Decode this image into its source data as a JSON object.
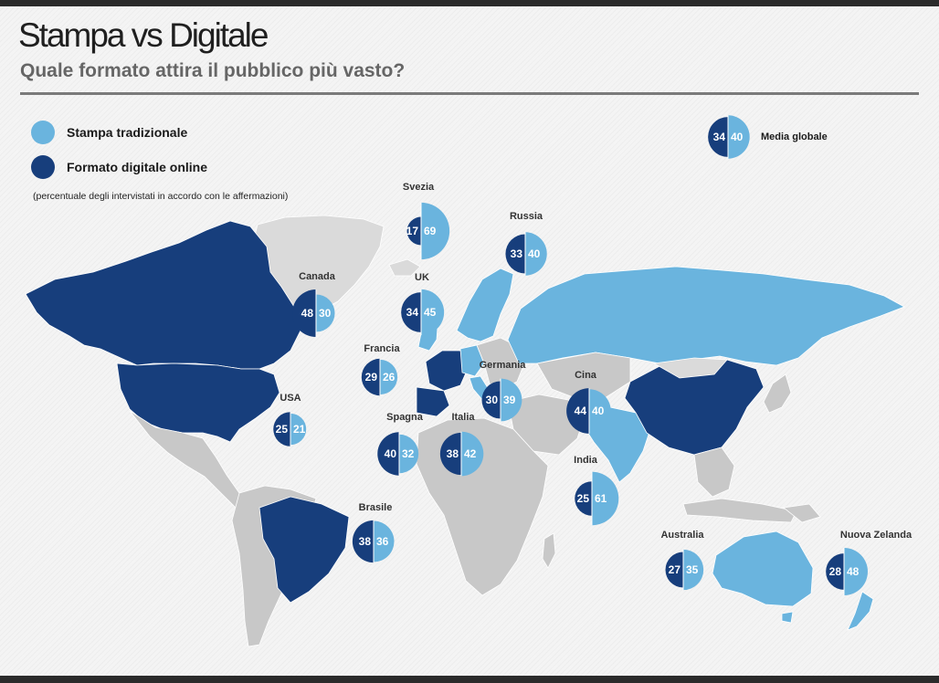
{
  "header": {
    "title": "Stampa vs Digitale",
    "subtitle": "Quale formato attira il pubblico più vasto?"
  },
  "legend": {
    "items": [
      {
        "label": "Stampa tradizionale",
        "color": "#6ab4de"
      },
      {
        "label": "Formato digitale online",
        "color": "#173e7c"
      }
    ],
    "note": "(percentuale degli intervistati in accordo con le affermazioni)"
  },
  "colors": {
    "print": "#6ab4de",
    "digital": "#173e7c",
    "land": "#c8c8c8",
    "land_alt": "#dadada"
  },
  "global": {
    "label": "Media globale",
    "digital": 34,
    "print": 40
  },
  "countries": [
    {
      "name": "Svezia",
      "digital": 17,
      "print": 69,
      "map_group": "print"
    },
    {
      "name": "Russia",
      "digital": 33,
      "print": 40,
      "map_group": "print"
    },
    {
      "name": "Canada",
      "digital": 48,
      "print": 30,
      "map_group": "digital"
    },
    {
      "name": "UK",
      "digital": 34,
      "print": 45,
      "map_group": "print"
    },
    {
      "name": "Francia",
      "digital": 29,
      "print": 26,
      "map_group": "digital"
    },
    {
      "name": "Germania",
      "digital": 30,
      "print": 39,
      "map_group": "print"
    },
    {
      "name": "Cina",
      "digital": 44,
      "print": 40,
      "map_group": "digital"
    },
    {
      "name": "USA",
      "digital": 25,
      "print": 21,
      "map_group": "digital"
    },
    {
      "name": "Spagna",
      "digital": 40,
      "print": 32,
      "map_group": "digital"
    },
    {
      "name": "Italia",
      "digital": 38,
      "print": 42,
      "map_group": "print"
    },
    {
      "name": "India",
      "digital": 25,
      "print": 61,
      "map_group": "print"
    },
    {
      "name": "Brasile",
      "digital": 38,
      "print": 36,
      "map_group": "digital"
    },
    {
      "name": "Australia",
      "digital": 27,
      "print": 35,
      "map_group": "print"
    },
    {
      "name": "Nuova Zelanda",
      "digital": 28,
      "print": 48,
      "map_group": "print"
    }
  ]
}
